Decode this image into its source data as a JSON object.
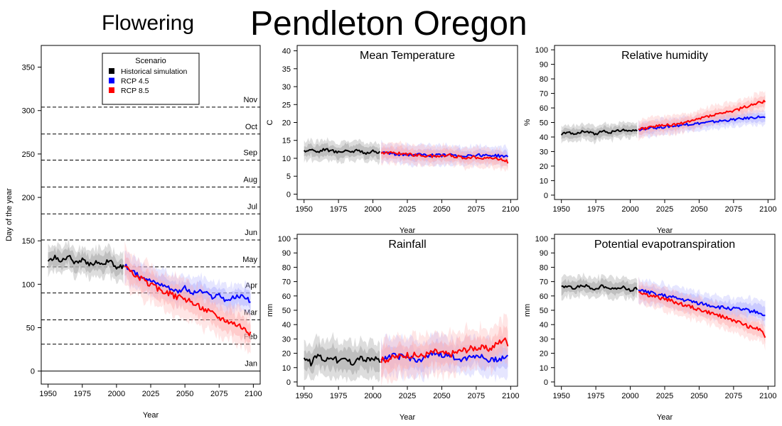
{
  "page": {
    "title": "Pendleton Oregon",
    "subtitle": "Flowering"
  },
  "colors": {
    "historical": "#000000",
    "rcp45": "#0000ff",
    "rcp85": "#ff0000",
    "historical_band": "#b4b4b4",
    "rcp45_band": "#b4b4ff",
    "rcp85_band": "#ffb4b4"
  },
  "chart_data": [
    {
      "id": "flowering",
      "type": "line",
      "title": "",
      "xlabel": "Year",
      "ylabel": "Day of the year",
      "xlim": [
        1945,
        2105
      ],
      "ylim": [
        -15,
        375
      ],
      "xticks": [
        1950,
        1975,
        2000,
        2025,
        2050,
        2075,
        2100
      ],
      "yticks": [
        0,
        50,
        100,
        150,
        200,
        250,
        300,
        350
      ],
      "legend": {
        "title": "Scenario",
        "placement": "top-center",
        "entries": [
          "Historical simulation",
          "RCP 4.5",
          "RCP 8.5"
        ]
      },
      "month_lines": [
        {
          "label": "Jan",
          "day": 0
        },
        {
          "label": "Feb",
          "day": 31
        },
        {
          "label": "Mar",
          "day": 59
        },
        {
          "label": "Apr",
          "day": 90
        },
        {
          "label": "May",
          "day": 120
        },
        {
          "label": "Jun",
          "day": 151
        },
        {
          "label": "Jul",
          "day": 181
        },
        {
          "label": "Aug",
          "day": 212
        },
        {
          "label": "Sep",
          "day": 243
        },
        {
          "label": "Oct",
          "day": 273
        },
        {
          "label": "Nov",
          "day": 304
        }
      ],
      "series": [
        {
          "name": "Historical simulation",
          "color": "#000000",
          "x": [
            1950,
            1955,
            1960,
            1965,
            1970,
            1975,
            1980,
            1985,
            1990,
            1995,
            2000,
            2005
          ],
          "values": [
            127,
            131,
            126,
            133,
            124,
            128,
            122,
            126,
            124,
            127,
            119,
            121
          ],
          "spread": 18
        },
        {
          "name": "RCP 4.5",
          "color": "#0000ff",
          "x": [
            2006,
            2010,
            2015,
            2020,
            2025,
            2030,
            2035,
            2040,
            2045,
            2050,
            2055,
            2060,
            2065,
            2070,
            2075,
            2080,
            2085,
            2090,
            2095,
            2098
          ],
          "values": [
            122,
            116,
            111,
            109,
            104,
            101,
            99,
            95,
            92,
            96,
            89,
            92,
            90,
            85,
            88,
            81,
            84,
            86,
            85,
            79
          ],
          "spread": 18
        },
        {
          "name": "RCP 8.5",
          "color": "#ff0000",
          "x": [
            2006,
            2010,
            2015,
            2020,
            2025,
            2030,
            2035,
            2040,
            2045,
            2050,
            2055,
            2060,
            2065,
            2070,
            2075,
            2080,
            2085,
            2090,
            2095,
            2098
          ],
          "values": [
            124,
            114,
            109,
            104,
            100,
            95,
            92,
            88,
            85,
            83,
            79,
            75,
            71,
            67,
            62,
            59,
            56,
            53,
            47,
            42
          ],
          "spread": 24
        }
      ]
    },
    {
      "id": "mean_temperature",
      "type": "line",
      "title": "Mean Temperature",
      "xlabel": "Year",
      "ylabel": "C",
      "xlim": [
        1945,
        2105
      ],
      "ylim": [
        -1.5,
        41.5
      ],
      "xticks": [
        1950,
        1975,
        2000,
        2025,
        2050,
        2075,
        2100
      ],
      "yticks": [
        0,
        5,
        10,
        15,
        20,
        25,
        30,
        35,
        40
      ],
      "series": [
        {
          "name": "Historical simulation",
          "color": "#000000",
          "x": [
            1950,
            1955,
            1960,
            1965,
            1970,
            1975,
            1980,
            1985,
            1990,
            1995,
            2000,
            2005
          ],
          "values": [
            12.0,
            12.5,
            11.8,
            12.6,
            12.1,
            11.7,
            12.3,
            11.9,
            12.2,
            11.5,
            11.9,
            11.6
          ],
          "spread": 3
        },
        {
          "name": "RCP 4.5",
          "color": "#0000ff",
          "x": [
            2006,
            2015,
            2025,
            2035,
            2045,
            2055,
            2065,
            2075,
            2085,
            2095,
            2098
          ],
          "values": [
            11.6,
            11.3,
            11.0,
            10.9,
            10.8,
            10.9,
            10.7,
            10.9,
            10.8,
            10.6,
            10.3
          ],
          "spread": 3
        },
        {
          "name": "RCP 8.5",
          "color": "#ff0000",
          "x": [
            2006,
            2015,
            2025,
            2035,
            2045,
            2055,
            2065,
            2075,
            2085,
            2095,
            2098
          ],
          "values": [
            11.4,
            11.5,
            11.2,
            10.8,
            10.5,
            10.9,
            10.2,
            10.3,
            10.1,
            9.6,
            9.0
          ],
          "spread": 3
        }
      ]
    },
    {
      "id": "relative_humidity",
      "type": "line",
      "title": "Relative humidity",
      "xlabel": "Year",
      "ylabel": "%",
      "xlim": [
        1945,
        2105
      ],
      "ylim": [
        -3,
        103
      ],
      "xticks": [
        1950,
        1975,
        2000,
        2025,
        2050,
        2075,
        2100
      ],
      "yticks": [
        0,
        10,
        20,
        30,
        40,
        50,
        60,
        70,
        80,
        90,
        100
      ],
      "series": [
        {
          "name": "Historical simulation",
          "color": "#000000",
          "x": [
            1950,
            1955,
            1960,
            1965,
            1970,
            1975,
            1980,
            1985,
            1990,
            1995,
            2000,
            2005
          ],
          "values": [
            42,
            43,
            42,
            44,
            43,
            42,
            44,
            43,
            44,
            45,
            44,
            45
          ],
          "spread": 6
        },
        {
          "name": "RCP 4.5",
          "color": "#0000ff",
          "x": [
            2006,
            2015,
            2025,
            2035,
            2045,
            2055,
            2065,
            2075,
            2085,
            2095,
            2098
          ],
          "values": [
            45,
            46,
            47,
            48,
            49,
            50,
            51,
            52,
            53,
            54,
            53
          ],
          "spread": 6
        },
        {
          "name": "RCP 8.5",
          "color": "#ff0000",
          "x": [
            2006,
            2015,
            2025,
            2035,
            2045,
            2055,
            2065,
            2075,
            2085,
            2095,
            2098
          ],
          "values": [
            45,
            47,
            48,
            49,
            51,
            54,
            56,
            58,
            61,
            64,
            65
          ],
          "spread": 7
        }
      ]
    },
    {
      "id": "rainfall",
      "type": "line",
      "title": "Rainfall",
      "xlabel": "Year",
      "ylabel": "mm",
      "xlim": [
        1945,
        2105
      ],
      "ylim": [
        -3,
        103
      ],
      "xticks": [
        1950,
        1975,
        2000,
        2025,
        2050,
        2075,
        2100
      ],
      "yticks": [
        0,
        10,
        20,
        30,
        40,
        50,
        60,
        70,
        80,
        90,
        100
      ],
      "series": [
        {
          "name": "Historical simulation",
          "color": "#000000",
          "x": [
            1950,
            1955,
            1960,
            1965,
            1970,
            1975,
            1980,
            1985,
            1990,
            1995,
            2000,
            2005
          ],
          "values": [
            17,
            13,
            19,
            15,
            18,
            14,
            16,
            13,
            17,
            15,
            16,
            15
          ],
          "spread": 14
        },
        {
          "name": "RCP 4.5",
          "color": "#0000ff",
          "x": [
            2006,
            2015,
            2025,
            2035,
            2045,
            2055,
            2065,
            2075,
            2085,
            2095,
            2098
          ],
          "values": [
            16,
            18,
            17,
            15,
            20,
            18,
            16,
            19,
            15,
            17,
            18
          ],
          "spread": 14
        },
        {
          "name": "RCP 8.5",
          "color": "#ff0000",
          "x": [
            2006,
            2015,
            2025,
            2035,
            2045,
            2055,
            2065,
            2075,
            2085,
            2095,
            2098
          ],
          "values": [
            15,
            17,
            19,
            18,
            21,
            19,
            22,
            24,
            23,
            30,
            27
          ],
          "spread": 16
        }
      ]
    },
    {
      "id": "potential_evapotranspiration",
      "type": "line",
      "title": "Potential evapotranspiration",
      "xlabel": "Year",
      "ylabel": "mm",
      "xlim": [
        1945,
        2105
      ],
      "ylim": [
        -3,
        103
      ],
      "xticks": [
        1950,
        1975,
        2000,
        2025,
        2050,
        2075,
        2100
      ],
      "yticks": [
        0,
        10,
        20,
        30,
        40,
        50,
        60,
        70,
        80,
        90,
        100
      ],
      "series": [
        {
          "name": "Historical simulation",
          "color": "#000000",
          "x": [
            1950,
            1955,
            1960,
            1965,
            1970,
            1975,
            1980,
            1985,
            1990,
            1995,
            2000,
            2005
          ],
          "values": [
            66,
            67,
            65,
            68,
            66,
            65,
            67,
            66,
            65,
            66,
            64,
            65
          ],
          "spread": 8
        },
        {
          "name": "RCP 4.5",
          "color": "#0000ff",
          "x": [
            2006,
            2015,
            2025,
            2035,
            2045,
            2055,
            2065,
            2075,
            2085,
            2095,
            2098
          ],
          "values": [
            64,
            62,
            60,
            58,
            56,
            54,
            52,
            51,
            50,
            48,
            46
          ],
          "spread": 9
        },
        {
          "name": "RCP 8.5",
          "color": "#ff0000",
          "x": [
            2006,
            2015,
            2025,
            2035,
            2045,
            2055,
            2065,
            2075,
            2085,
            2095,
            2098
          ],
          "values": [
            63,
            60,
            58,
            55,
            52,
            49,
            46,
            43,
            39,
            36,
            32
          ],
          "spread": 9
        }
      ]
    }
  ]
}
